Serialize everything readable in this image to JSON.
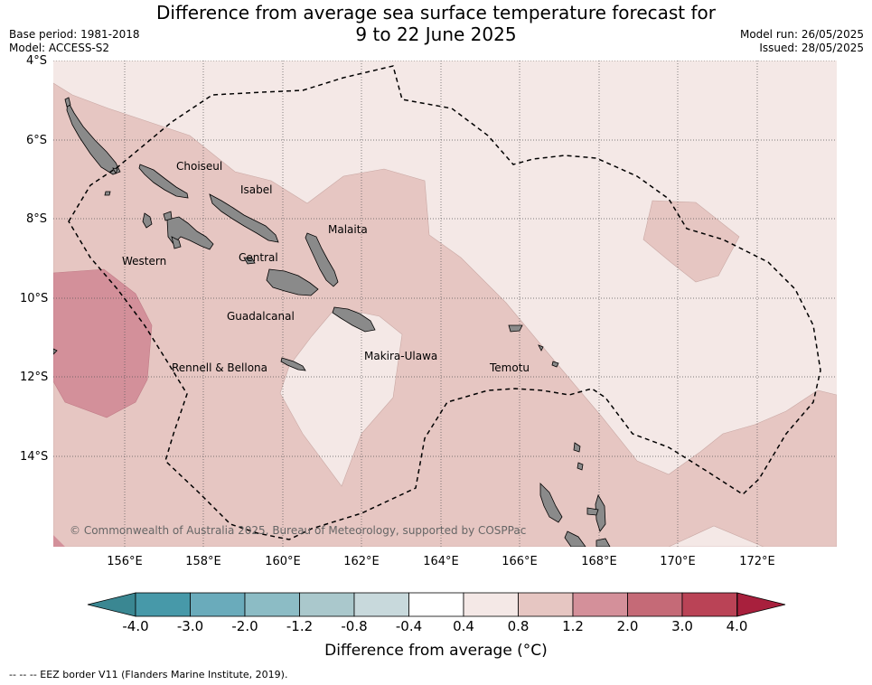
{
  "header": {
    "title_line1": "Difference from average sea surface temperature forecast for",
    "title_line2": "9 to 22 June 2025",
    "base_period": "Base period: 1981-2018",
    "model": "Model: ACCESS-S2",
    "model_run": "Model run: 26/05/2025",
    "issued": "Issued: 28/05/2025"
  },
  "map": {
    "lat_labels": [
      "4°S",
      "6°S",
      "8°S",
      "10°S",
      "12°S",
      "14°S"
    ],
    "lon_labels": [
      "156°E",
      "158°E",
      "160°E",
      "162°E",
      "164°E",
      "166°E",
      "168°E",
      "170°E",
      "172°E"
    ],
    "regions": [
      "Choiseul",
      "Isabel",
      "Malaita",
      "Western",
      "Central",
      "Guadalcanal",
      "Makira-Ulawa",
      "Rennell & Bellona",
      "Temotu"
    ],
    "copyright": "© Commonwealth of Australia 2025, Bureau of Meteorology, supported by COSPPac",
    "colors": {
      "ocean_light": "#f4e8e6",
      "ocean_mid": "#e6c6c2",
      "ocean_high": "#d3909a",
      "land": "#8a8a8a"
    }
  },
  "colorbar": {
    "ticks": [
      "-4.0",
      "-3.0",
      "-2.0",
      "-1.2",
      "-0.8",
      "-0.4",
      "0.4",
      "0.8",
      "1.2",
      "2.0",
      "3.0",
      "4.0"
    ],
    "colors": [
      "#4799a9",
      "#6aabbb",
      "#8cbcc5",
      "#aac8cc",
      "#c8d9dc",
      "#ffffff",
      "#f4e8e6",
      "#e6c6c2",
      "#d4909a",
      "#c56a77",
      "#ba4356"
    ],
    "low_color": "#3a8792",
    "high_color": "#a8203d",
    "title": "Difference from average (°C)"
  },
  "footnote": "--  --  -- EEZ border V11 (Flanders Marine Institute, 2019)."
}
